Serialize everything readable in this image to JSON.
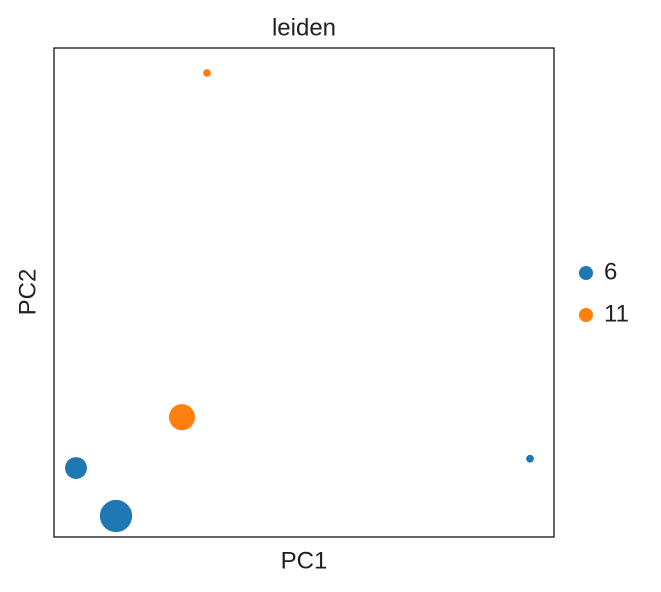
{
  "chart_data": {
    "type": "scatter",
    "title": "leiden",
    "x_label": "PC1",
    "y_label": "PC2",
    "xlim": [
      0,
      100
    ],
    "ylim": [
      0,
      100
    ],
    "legend": "right",
    "grid": false,
    "series": [
      {
        "name": "6",
        "color": "#1f77b4",
        "x": [
          4.4,
          12.4,
          95.2
        ],
        "values": [
          14.1,
          4.3,
          16.0
        ],
        "sizes": [
          120,
          260,
          15
        ]
      },
      {
        "name": "11",
        "color": "#ff7f0e",
        "x": [
          25.6,
          30.6
        ],
        "values": [
          24.5,
          94.9
        ],
        "sizes": [
          170,
          15
        ]
      }
    ]
  }
}
